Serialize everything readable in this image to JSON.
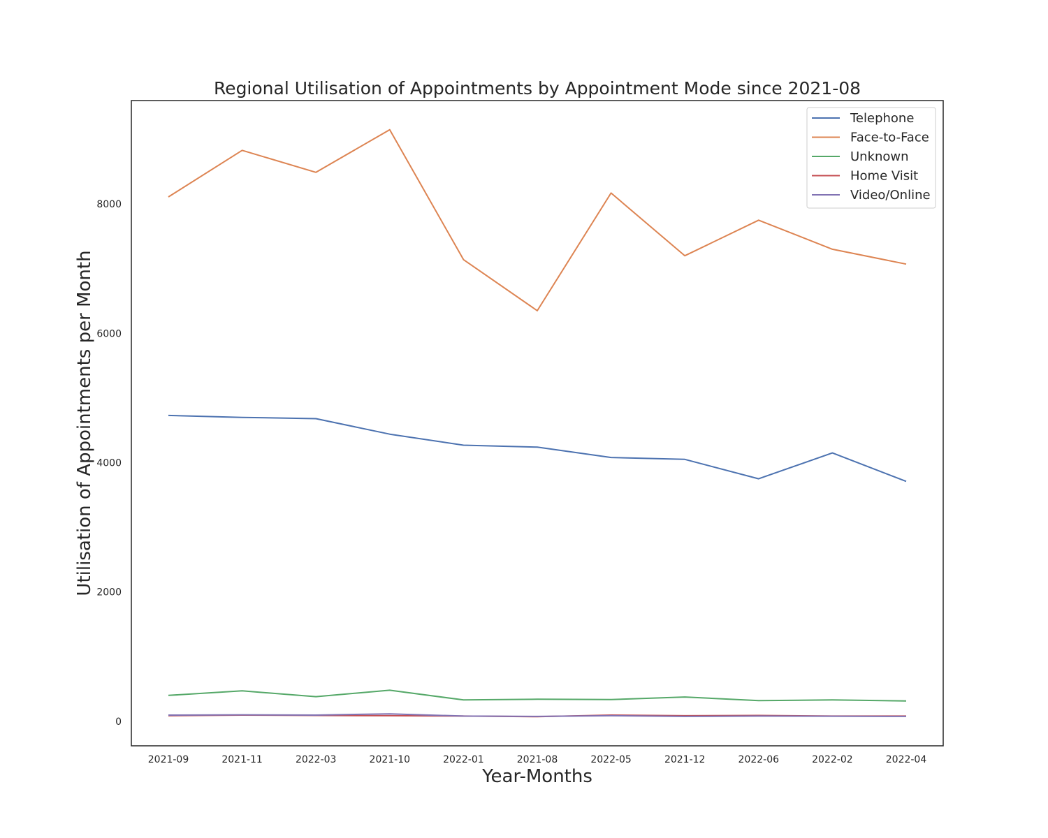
{
  "chart_data": {
    "type": "line",
    "title": "Regional Utilisation of Appointments by Appointment Mode since 2021-08",
    "xlabel": "Year-Months",
    "ylabel": "Utilisation of Appointments per Month",
    "categories": [
      "2021-09",
      "2021-11",
      "2022-03",
      "2021-10",
      "2022-01",
      "2021-08",
      "2022-05",
      "2021-12",
      "2022-06",
      "2022-02",
      "2022-04"
    ],
    "ylim": [
      -380,
      9600
    ],
    "yticks": [
      0,
      2000,
      4000,
      6000,
      8000
    ],
    "ytick_labels": [
      "0",
      "2000",
      "4000",
      "6000",
      "8000"
    ],
    "grid": false,
    "legend_position": "top-right",
    "series": [
      {
        "name": "Telephone",
        "color": "#4c72b0",
        "values": [
          4730,
          4700,
          4680,
          4440,
          4270,
          4240,
          4080,
          4050,
          3750,
          4150,
          3710
        ]
      },
      {
        "name": "Face-to-Face",
        "color": "#dd8452",
        "values": [
          8110,
          8830,
          8490,
          9150,
          7140,
          6350,
          8170,
          7200,
          7750,
          7300,
          7070
        ]
      },
      {
        "name": "Unknown",
        "color": "#55a868",
        "values": [
          400,
          470,
          380,
          480,
          330,
          340,
          335,
          375,
          320,
          330,
          315
        ]
      },
      {
        "name": "Home Visit",
        "color": "#c44e52",
        "values": [
          85,
          95,
          90,
          85,
          80,
          70,
          95,
          85,
          90,
          80,
          80
        ]
      },
      {
        "name": "Video/Online",
        "color": "#8172b3",
        "values": [
          95,
          100,
          95,
          115,
          80,
          75,
          85,
          75,
          80,
          78,
          75
        ]
      }
    ]
  }
}
